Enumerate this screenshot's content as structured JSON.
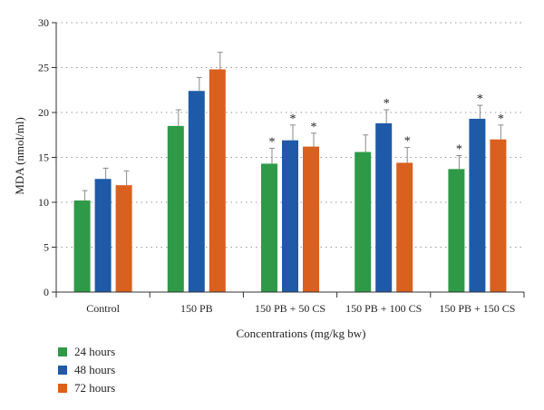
{
  "colors": {
    "24h": "#2e9a47",
    "48h": "#1f5aa8",
    "72h": "#d9601e",
    "grid": "#9a9a9a",
    "axis": "#333333",
    "error": "#8a8a8a"
  },
  "chart_data": {
    "type": "bar",
    "title": "",
    "xlabel": "Concentrations (mg/kg bw)",
    "ylabel": "MDA (nmol/ml)",
    "ylim": [
      0,
      30
    ],
    "yticks": [
      0,
      5,
      10,
      15,
      20,
      25,
      30
    ],
    "grid": "horizontal-dotted",
    "legend_placement": "bottom-left",
    "categories": [
      "Control",
      "150 PB",
      "150 PB + 50 CS",
      "150 PB + 100 CS",
      "150 PB + 150 CS"
    ],
    "series": [
      {
        "name": "24 hours",
        "color_key": "24h",
        "values": [
          10.2,
          18.5,
          14.3,
          15.6,
          13.7
        ],
        "errors": [
          1.1,
          1.8,
          1.7,
          1.9,
          1.5
        ],
        "marks": [
          "",
          "",
          "*",
          "",
          "*"
        ]
      },
      {
        "name": "48 hours",
        "color_key": "48h",
        "values": [
          12.6,
          22.4,
          16.9,
          18.8,
          19.3
        ],
        "errors": [
          1.2,
          1.5,
          1.7,
          1.5,
          1.5
        ],
        "marks": [
          "",
          "",
          "*",
          "*",
          "*"
        ]
      },
      {
        "name": "72 hours",
        "color_key": "72h",
        "values": [
          11.9,
          24.8,
          16.2,
          14.4,
          17.0
        ],
        "errors": [
          1.6,
          1.9,
          1.5,
          1.7,
          1.6
        ],
        "marks": [
          "",
          "",
          "*",
          "*",
          "*"
        ]
      }
    ]
  }
}
